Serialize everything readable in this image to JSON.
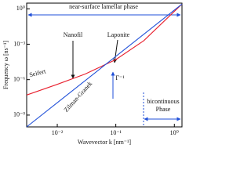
{
  "chart_data": {
    "type": "line",
    "x_label": "Wavevector k [nm⁻¹]",
    "y_label": "Frequency ω [ns⁻¹]",
    "x_scale": "log",
    "y_scale": "log",
    "xlim": [
      0.003,
      1.35
    ],
    "ylim": [
      1e-10,
      3
    ],
    "xticks": [
      {
        "value": 0.01,
        "label": "10⁻²"
      },
      {
        "value": 0.1,
        "label": "10⁻¹"
      },
      {
        "value": 1,
        "label": "10⁰"
      }
    ],
    "yticks": [
      {
        "value": 1e-09,
        "label": "10⁻⁹"
      },
      {
        "value": 1e-06,
        "label": "10⁻⁶"
      },
      {
        "value": 0.001,
        "label": "10⁻³"
      },
      {
        "value": 1,
        "label": "10⁰"
      }
    ],
    "series": [
      {
        "name": "Seifert",
        "color": "#e8202e",
        "x": [
          0.003,
          0.01,
          0.03,
          0.06,
          0.1,
          0.3,
          1.35
        ],
        "values": [
          5e-08,
          4e-07,
          3e-06,
          1.5e-05,
          5e-05,
          0.002,
          2.5
        ]
      },
      {
        "name": "Zilman-Granek",
        "color": "#1f4fd8",
        "x": [
          0.003,
          1.35
        ],
        "values": [
          1e-10,
          2.5
        ]
      }
    ],
    "annotations": [
      "near-surface lamellar phase",
      "Nanofil",
      "Laponite",
      "Γ⁻¹",
      "bicontinuous",
      "Phase"
    ]
  }
}
